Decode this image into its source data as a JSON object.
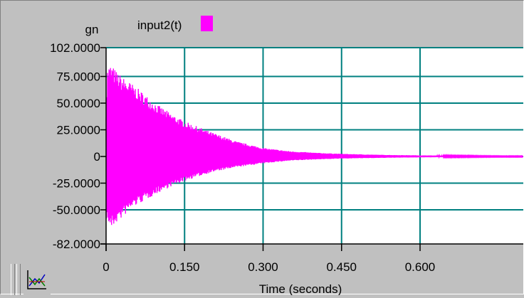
{
  "chart_data": {
    "type": "line",
    "title": "",
    "ylabel": "gn",
    "xlabel": "Time (seconds)",
    "ylim": [
      -82.0,
      102.0
    ],
    "xlim": [
      0,
      0.75
    ],
    "y_ticks": [
      102.0,
      75.0,
      50.0,
      25.0,
      0,
      -25.0,
      -50.0,
      -82.0
    ],
    "y_tick_labels": [
      "102.0000",
      "75.0000",
      "50.0000",
      "25.0000",
      "0",
      "-25.0000",
      "-50.0000",
      "-82.0000"
    ],
    "x_ticks": [
      0,
      0.15,
      0.3,
      0.45,
      0.6
    ],
    "x_tick_labels": [
      "0",
      "0.150",
      "0.300",
      "0.450",
      "0.600"
    ],
    "grid": true,
    "legend_position": "top",
    "series": [
      {
        "name": "input2(t)",
        "color": "#ff00ff",
        "description_type": "decaying oscillation envelope",
        "envelope_x": [
          0,
          0.003,
          0.01,
          0.02,
          0.03,
          0.05,
          0.075,
          0.1,
          0.125,
          0.15,
          0.175,
          0.2,
          0.25,
          0.3,
          0.35,
          0.4,
          0.45,
          0.5,
          0.55,
          0.6,
          0.65,
          0.7,
          0.75
        ],
        "envelope_upper": [
          45,
          85,
          86,
          80,
          75,
          68,
          58,
          48,
          40,
          33,
          28,
          23,
          14,
          8,
          5,
          3.5,
          2.5,
          1.8,
          1.3,
          1.0,
          0.8,
          0.6,
          0.4
        ],
        "envelope_lower": [
          -58,
          -62,
          -68,
          -62,
          -58,
          -48,
          -41,
          -34,
          -28,
          -23,
          -19,
          -15,
          -10,
          -6.5,
          -4,
          -2.8,
          -2,
          -1.5,
          -1.1,
          -0.8,
          -0.6,
          -0.5,
          -0.4
        ]
      }
    ]
  },
  "colors": {
    "plot_background": "#ffffff",
    "grid": "#008080",
    "panel": "#c0c0c0"
  },
  "toolbar": {
    "chart_tool_icon": "chart-lines-icon"
  }
}
